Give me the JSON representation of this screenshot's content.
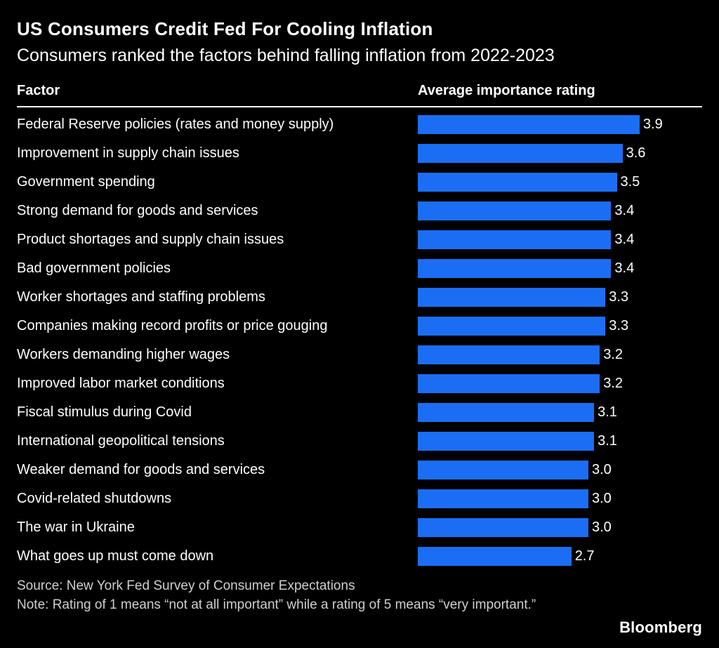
{
  "chart_data": {
    "type": "bar",
    "orientation": "horizontal",
    "title": "US Consumers Credit Fed For Cooling Inflation",
    "subtitle": "Consumers ranked the factors behind falling inflation from 2022-2023",
    "col_headers": [
      "Factor",
      "Average importance rating"
    ],
    "categories": [
      "Federal Reserve policies (rates and money supply)",
      "Improvement in supply chain issues",
      "Government spending",
      "Strong demand for goods and services",
      "Product shortages and supply chain issues",
      "Bad government policies",
      "Worker shortages and staffing problems",
      "Companies making record profits or price gouging",
      "Workers demanding higher wages",
      "Improved labor market conditions",
      "Fiscal stimulus during Covid",
      "International geopolitical tensions",
      "Weaker demand for goods and services",
      "Covid-related shutdowns",
      "The war in Ukraine",
      "What goes up must come down"
    ],
    "values": [
      3.9,
      3.6,
      3.5,
      3.4,
      3.4,
      3.4,
      3.3,
      3.3,
      3.2,
      3.2,
      3.1,
      3.1,
      3.0,
      3.0,
      3.0,
      2.7
    ],
    "xlim": [
      0,
      5
    ],
    "bar_color": "#1b6ef3",
    "background_color": "#000000",
    "text_color": "#ffffff",
    "grid": "off",
    "legend": "none"
  },
  "footer": {
    "source": "Source: New York Fed Survey of Consumer Expectations",
    "note": "Note: Rating of 1 means “not at all important” while a rating of 5 means “very important.”",
    "brand": "Bloomberg"
  }
}
